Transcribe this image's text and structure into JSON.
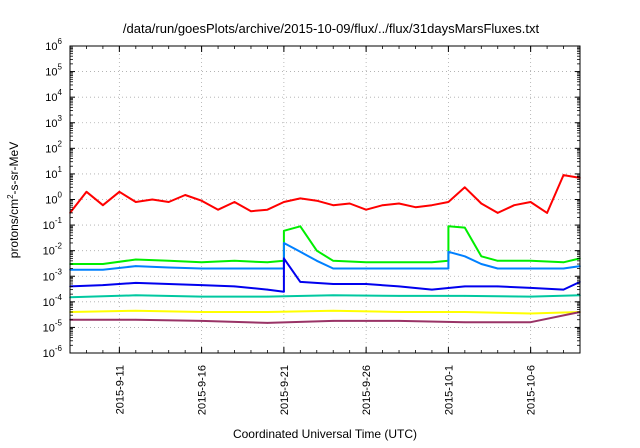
{
  "chart_data": {
    "type": "line",
    "title": "/data/run/goesPlots/archive/2015-10-09/flux/../flux/31daysMarsFluxes.txt",
    "xlabel": "Coordinated Universal Time (UTC)",
    "ylabel": "protons/cm2-s-sr-MeV",
    "y_scale": "log",
    "ylim": [
      1e-06,
      1000000
    ],
    "xlim": [
      "2015-09-08",
      "2015-10-09"
    ],
    "grid": true,
    "legend": "none",
    "y_ticks": [
      {
        "exp": "-6",
        "value": 1e-06
      },
      {
        "exp": "-5",
        "value": 1e-05
      },
      {
        "exp": "-4",
        "value": 0.0001
      },
      {
        "exp": "-3",
        "value": 0.001
      },
      {
        "exp": "-2",
        "value": 0.01
      },
      {
        "exp": "-1",
        "value": 0.1
      },
      {
        "exp": "0",
        "value": 1
      },
      {
        "exp": "1",
        "value": 10
      },
      {
        "exp": "2",
        "value": 100
      },
      {
        "exp": "3",
        "value": 1000
      },
      {
        "exp": "4",
        "value": 10000
      },
      {
        "exp": "5",
        "value": 100000
      },
      {
        "exp": "6",
        "value": 1000000
      }
    ],
    "x_ticks": [
      "2015-9-11",
      "2015-9-16",
      "2015-9-21",
      "2015-9-26",
      "2015-10-1",
      "2015-10-6"
    ],
    "series": [
      {
        "color": "#ff0000",
        "x": [
          "2015-09-08",
          "2015-09-09",
          "2015-09-10",
          "2015-09-11",
          "2015-09-12",
          "2015-09-13",
          "2015-09-14",
          "2015-09-15",
          "2015-09-16",
          "2015-09-17",
          "2015-09-18",
          "2015-09-19",
          "2015-09-20",
          "2015-09-21",
          "2015-09-22",
          "2015-09-23",
          "2015-09-24",
          "2015-09-25",
          "2015-09-26",
          "2015-09-27",
          "2015-09-28",
          "2015-09-29",
          "2015-09-30",
          "2015-10-01",
          "2015-10-02",
          "2015-10-03",
          "2015-10-04",
          "2015-10-05",
          "2015-10-06",
          "2015-10-07",
          "2015-10-08",
          "2015-10-09"
        ],
        "y": [
          0.3,
          2.0,
          0.6,
          2.0,
          0.8,
          1.0,
          0.8,
          1.5,
          0.9,
          0.4,
          0.8,
          0.35,
          0.4,
          0.8,
          1.1,
          0.9,
          0.6,
          0.7,
          0.4,
          0.6,
          0.7,
          0.5,
          0.6,
          0.8,
          3.0,
          0.7,
          0.3,
          0.6,
          0.8,
          0.3,
          9.0,
          7.0
        ]
      },
      {
        "color": "#00ee00",
        "x": [
          "2015-09-08",
          "2015-09-10",
          "2015-09-12",
          "2015-09-14",
          "2015-09-16",
          "2015-09-18",
          "2015-09-20",
          "2015-09-21",
          "2015-09-21",
          "2015-09-22",
          "2015-09-23",
          "2015-09-24",
          "2015-09-26",
          "2015-09-28",
          "2015-09-30",
          "2015-10-01",
          "2015-10-01",
          "2015-10-02",
          "2015-10-03",
          "2015-10-04",
          "2015-10-06",
          "2015-10-08",
          "2015-10-09"
        ],
        "y": [
          0.003,
          0.003,
          0.0045,
          0.004,
          0.0035,
          0.004,
          0.0035,
          0.004,
          0.06,
          0.09,
          0.01,
          0.004,
          0.0035,
          0.0035,
          0.0035,
          0.004,
          0.09,
          0.08,
          0.006,
          0.004,
          0.004,
          0.0035,
          0.005
        ]
      },
      {
        "color": "#0080ff",
        "x": [
          "2015-09-08",
          "2015-09-10",
          "2015-09-12",
          "2015-09-14",
          "2015-09-16",
          "2015-09-18",
          "2015-09-20",
          "2015-09-21",
          "2015-09-21",
          "2015-09-22",
          "2015-09-23",
          "2015-09-24",
          "2015-09-26",
          "2015-09-28",
          "2015-09-30",
          "2015-10-01",
          "2015-10-01",
          "2015-10-02",
          "2015-10-03",
          "2015-10-04",
          "2015-10-06",
          "2015-10-08",
          "2015-10-09"
        ],
        "y": [
          0.0018,
          0.0018,
          0.0025,
          0.0022,
          0.002,
          0.002,
          0.002,
          0.002,
          0.02,
          0.009,
          0.004,
          0.002,
          0.002,
          0.002,
          0.002,
          0.002,
          0.009,
          0.006,
          0.003,
          0.002,
          0.002,
          0.002,
          0.0025
        ]
      },
      {
        "color": "#0000ee",
        "x": [
          "2015-09-08",
          "2015-09-10",
          "2015-09-12",
          "2015-09-14",
          "2015-09-16",
          "2015-09-18",
          "2015-09-20",
          "2015-09-21",
          "2015-09-21",
          "2015-09-22",
          "2015-09-24",
          "2015-09-26",
          "2015-09-28",
          "2015-09-30",
          "2015-10-02",
          "2015-10-04",
          "2015-10-06",
          "2015-10-08",
          "2015-10-09"
        ],
        "y": [
          0.0004,
          0.00045,
          0.00055,
          0.0005,
          0.00045,
          0.0004,
          0.0003,
          0.00025,
          0.005,
          0.0006,
          0.0005,
          0.0005,
          0.0004,
          0.0003,
          0.0004,
          0.0004,
          0.00035,
          0.0003,
          0.0006
        ]
      },
      {
        "color": "#00c8a0",
        "x": [
          "2015-09-08",
          "2015-09-12",
          "2015-09-16",
          "2015-09-20",
          "2015-09-24",
          "2015-09-28",
          "2015-10-02",
          "2015-10-06",
          "2015-10-09"
        ],
        "y": [
          0.00015,
          0.00018,
          0.00016,
          0.00016,
          0.00018,
          0.00017,
          0.00017,
          0.00016,
          0.00018
        ]
      },
      {
        "color": "#ffff00",
        "x": [
          "2015-09-08",
          "2015-09-12",
          "2015-09-16",
          "2015-09-20",
          "2015-09-24",
          "2015-09-28",
          "2015-10-02",
          "2015-10-06",
          "2015-10-09"
        ],
        "y": [
          4e-05,
          4.5e-05,
          4e-05,
          4e-05,
          4.5e-05,
          4e-05,
          4e-05,
          3.5e-05,
          4e-05
        ]
      },
      {
        "color": "#993366",
        "x": [
          "2015-09-08",
          "2015-09-12",
          "2015-09-16",
          "2015-09-20",
          "2015-09-24",
          "2015-09-28",
          "2015-10-02",
          "2015-10-06",
          "2015-10-09"
        ],
        "y": [
          2e-05,
          2e-05,
          1.8e-05,
          1.5e-05,
          1.8e-05,
          1.8e-05,
          1.6e-05,
          1.6e-05,
          4e-05
        ]
      }
    ]
  }
}
